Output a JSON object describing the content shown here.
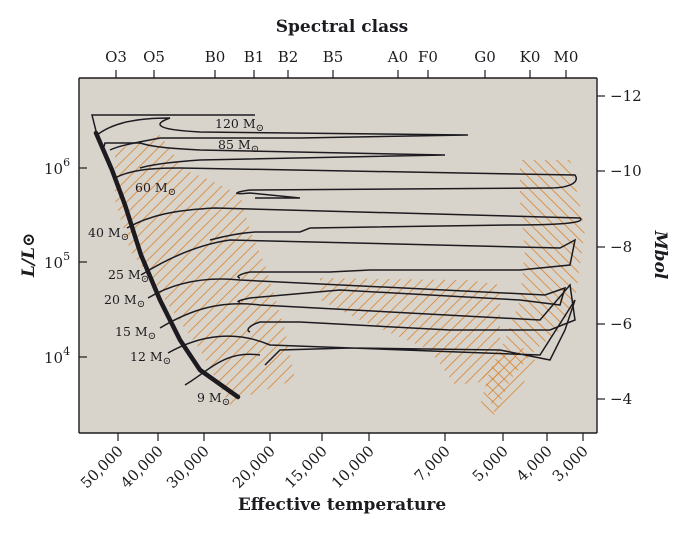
{
  "chart_data": {
    "type": "line",
    "title": "Spectral class",
    "xlabel": "Effective temperature",
    "ylabel": "L/L⊙",
    "ylabel_right": "Mbol",
    "spectral_classes": [
      "O3",
      "O5",
      "B0",
      "B1",
      "B2",
      "B5",
      "A0",
      "F0",
      "G0",
      "K0",
      "M0"
    ],
    "x_ticks": [
      "50,000",
      "40,000",
      "30,000",
      "20,000",
      "15,000",
      "10,000",
      "7,000",
      "5,000",
      "4,000",
      "3,000"
    ],
    "y_ticks_left": [
      {
        "base": "10",
        "exp": "6"
      },
      {
        "base": "10",
        "exp": "5"
      },
      {
        "base": "10",
        "exp": "4"
      }
    ],
    "y_ticks_right": [
      "−12",
      "−10",
      "−8",
      "−6",
      "−4"
    ],
    "x_scale": "log, decreasing",
    "y_scale": "log",
    "series": [
      {
        "name": "120 M⊙",
        "label": "120 M",
        "start": {
          "teff": 53000,
          "logL": 6.22
        }
      },
      {
        "name": "85 M⊙",
        "label": "85 M",
        "start": {
          "teff": 49000,
          "logL": 6.05
        }
      },
      {
        "name": "60 M⊙",
        "label": "60 M",
        "start": {
          "teff": 45500,
          "logL": 5.85
        }
      },
      {
        "name": "40 M⊙",
        "label": "40 M",
        "start": {
          "teff": 42000,
          "logL": 5.5
        }
      },
      {
        "name": "25 M⊙",
        "label": "25 M",
        "start": {
          "teff": 37500,
          "logL": 5.0
        }
      },
      {
        "name": "20 M⊙",
        "label": "20 M",
        "start": {
          "teff": 35000,
          "logL": 4.75
        }
      },
      {
        "name": "15 M⊙",
        "label": "15 M",
        "start": {
          "teff": 31500,
          "logL": 4.4
        }
      },
      {
        "name": "12 M⊙",
        "label": "12 M",
        "start": {
          "teff": 29000,
          "logL": 4.1
        }
      },
      {
        "name": "9 M⊙",
        "label": "9 M",
        "start": {
          "teff": 25000,
          "logL": 3.6
        }
      }
    ],
    "mass_symbol": "⊙",
    "grid": false
  }
}
